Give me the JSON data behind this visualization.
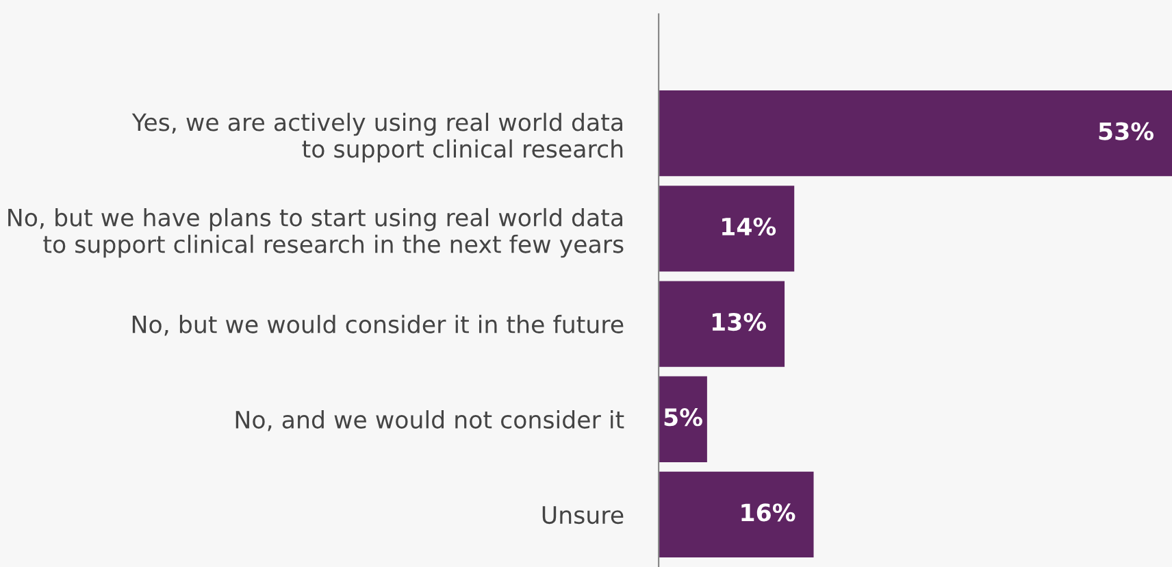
{
  "chart_data": {
    "type": "bar",
    "orientation": "horizontal",
    "categories": [
      "Yes, we are actively using real world data\nto support clinical research",
      "No, but we have plans to start using real world data\nto support clinical research in the next few years",
      "No, but we would consider it in the future",
      "No, and we would not consider it",
      "Unsure"
    ],
    "values": [
      53,
      14,
      13,
      5,
      16
    ],
    "value_labels": [
      "53%",
      "14%",
      "13%",
      "5%",
      "16%"
    ],
    "color": "#5e2462",
    "grid": false,
    "legend": false,
    "tick_labels": "y"
  }
}
